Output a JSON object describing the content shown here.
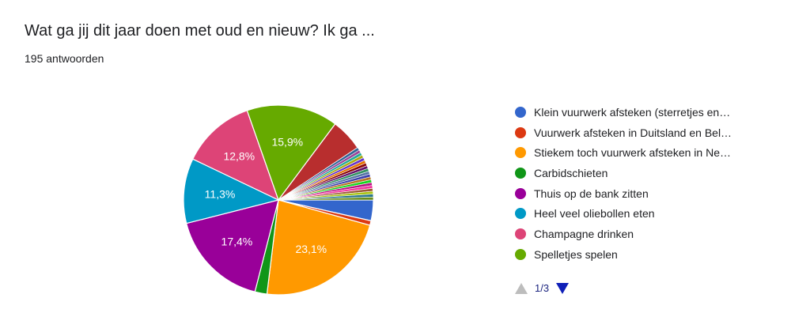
{
  "header": {
    "title": "Wat ga jij dit jaar doen met oud en nieuw? Ik ga ...",
    "responses": "195 antwoorden"
  },
  "chart_data": {
    "type": "pie",
    "total_responses": 195,
    "slices": [
      {
        "label": "Klein vuurwerk afsteken (sterretjes en…",
        "value": 3.6,
        "color": "#3366cc",
        "value_label": ""
      },
      {
        "label": "Vuurwerk afsteken in Duitsland en Bel…",
        "value": 0.8,
        "color": "#dc3912",
        "value_label": ""
      },
      {
        "label": "Stiekem toch vuurwerk afsteken in Ne…",
        "value": 23.1,
        "color": "#ff9900",
        "value_label": "23,1%"
      },
      {
        "label": "Carbidschieten",
        "value": 2.1,
        "color": "#109618",
        "value_label": ""
      },
      {
        "label": "Thuis op de bank zitten",
        "value": 17.4,
        "color": "#990099",
        "value_label": "17,4%"
      },
      {
        "label": "Heel veel oliebollen eten",
        "value": 11.3,
        "color": "#0099c6",
        "value_label": "11,3%"
      },
      {
        "label": "Champagne drinken",
        "value": 12.8,
        "color": "#dd4477",
        "value_label": "12,8%"
      },
      {
        "label": "Spelletjes spelen",
        "value": 15.9,
        "color": "#66aa00",
        "value_label": "15,9%"
      },
      {
        "label": "",
        "value": 5.6,
        "color": "#b82e2e",
        "value_label": ""
      },
      {
        "label": "",
        "value": 0.5,
        "color": "#316395",
        "value_label": ""
      },
      {
        "label": "",
        "value": 0.5,
        "color": "#994499",
        "value_label": ""
      },
      {
        "label": "",
        "value": 0.5,
        "color": "#22aa99",
        "value_label": ""
      },
      {
        "label": "",
        "value": 0.5,
        "color": "#aaaa11",
        "value_label": ""
      },
      {
        "label": "",
        "value": 0.5,
        "color": "#6633cc",
        "value_label": ""
      },
      {
        "label": "",
        "value": 0.5,
        "color": "#e67300",
        "value_label": ""
      },
      {
        "label": "",
        "value": 0.5,
        "color": "#8b0707",
        "value_label": ""
      },
      {
        "label": "",
        "value": 0.5,
        "color": "#651067",
        "value_label": ""
      },
      {
        "label": "",
        "value": 0.5,
        "color": "#329262",
        "value_label": ""
      },
      {
        "label": "",
        "value": 0.5,
        "color": "#5574a6",
        "value_label": ""
      },
      {
        "label": "",
        "value": 0.5,
        "color": "#3b3eac",
        "value_label": ""
      },
      {
        "label": "",
        "value": 0.5,
        "color": "#b77322",
        "value_label": ""
      },
      {
        "label": "",
        "value": 0.5,
        "color": "#16d620",
        "value_label": ""
      },
      {
        "label": "",
        "value": 0.5,
        "color": "#b91383",
        "value_label": ""
      },
      {
        "label": "",
        "value": 0.5,
        "color": "#f4359e",
        "value_label": ""
      },
      {
        "label": "",
        "value": 0.5,
        "color": "#9c5935",
        "value_label": ""
      },
      {
        "label": "",
        "value": 0.5,
        "color": "#a9c413",
        "value_label": ""
      },
      {
        "label": "",
        "value": 0.5,
        "color": "#2a778d",
        "value_label": ""
      },
      {
        "label": "",
        "value": 0.5,
        "color": "#668d1c",
        "value_label": ""
      }
    ],
    "legend_position": "right"
  },
  "legend": {
    "items": [
      {
        "label": "Klein vuurwerk afsteken (sterretjes en…",
        "color": "#3366cc"
      },
      {
        "label": "Vuurwerk afsteken in Duitsland en Bel…",
        "color": "#dc3912"
      },
      {
        "label": "Stiekem toch vuurwerk afsteken in Ne…",
        "color": "#ff9900"
      },
      {
        "label": "Carbidschieten",
        "color": "#109618"
      },
      {
        "label": "Thuis op de bank zitten",
        "color": "#990099"
      },
      {
        "label": "Heel veel oliebollen eten",
        "color": "#0099c6"
      },
      {
        "label": "Champagne drinken",
        "color": "#dd4477"
      },
      {
        "label": "Spelletjes spelen",
        "color": "#66aa00"
      }
    ],
    "pager": {
      "label": "1/3",
      "prev_icon": "triangle-up-icon",
      "next_icon": "triangle-down-icon"
    }
  }
}
